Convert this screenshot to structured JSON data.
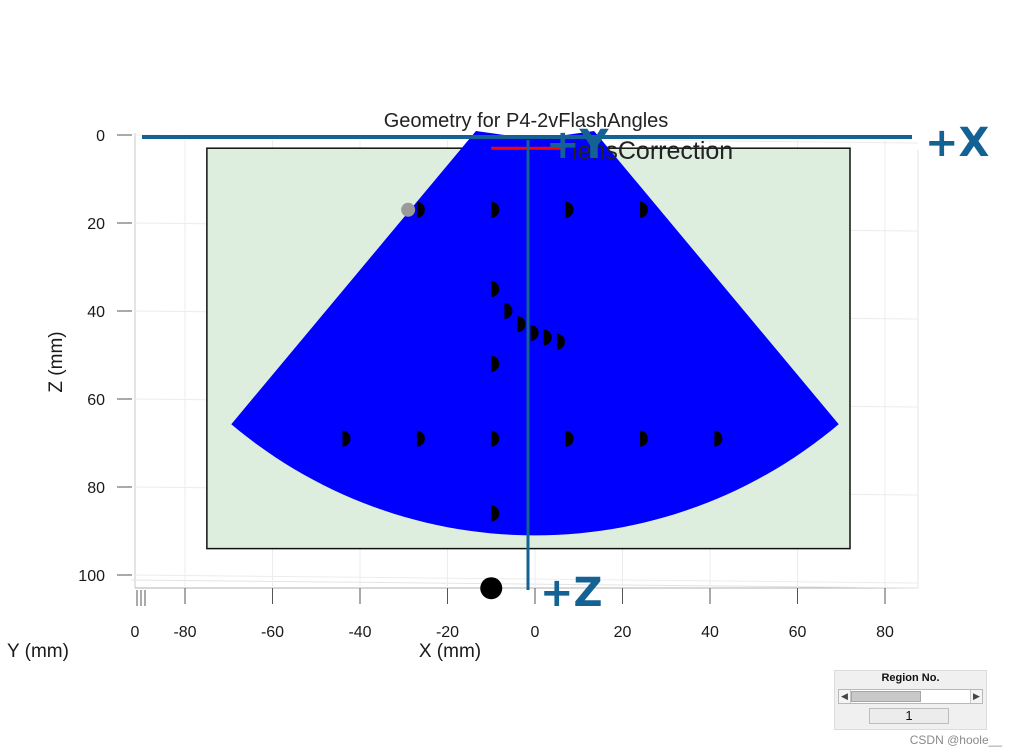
{
  "chart_data": {
    "type": "scatter",
    "title": "Geometry for P4-2vFlashAngles",
    "xlabel": "X (mm)",
    "ylabel": "Z (mm)",
    "y_depth_label": "Y (mm)",
    "xlim": [
      -92,
      88
    ],
    "zlim": [
      0,
      103
    ],
    "x_ticks": [
      -80,
      -60,
      -40,
      -20,
      0,
      20,
      40,
      60,
      80
    ],
    "z_ticks": [
      0,
      20,
      40,
      60,
      80,
      100
    ],
    "y_ticks": [
      0
    ],
    "grid": true,
    "region_box": {
      "x": [
        -75,
        72
      ],
      "z": [
        3,
        94
      ]
    },
    "sector": {
      "apex": [
        0,
        -17
      ],
      "top_half_width": 7,
      "inner_radius": 21,
      "outer_radius": 108,
      "half_angle_deg": 40,
      "color": "#0000ff"
    },
    "lens_label": "lensCorrection",
    "lens_line": {
      "x": [
        -10,
        7
      ],
      "z": [
        3,
        3
      ],
      "color": "#ff0000"
    },
    "scatterers": [
      {
        "x": -27,
        "z": 17
      },
      {
        "x": -10,
        "z": 17
      },
      {
        "x": 7,
        "z": 17
      },
      {
        "x": 24,
        "z": 17
      },
      {
        "x": -10,
        "z": 35
      },
      {
        "x": -7,
        "z": 40
      },
      {
        "x": -4,
        "z": 43
      },
      {
        "x": -1,
        "z": 45
      },
      {
        "x": 2,
        "z": 46
      },
      {
        "x": 5,
        "z": 47
      },
      {
        "x": -10,
        "z": 52
      },
      {
        "x": -44,
        "z": 69
      },
      {
        "x": -27,
        "z": 69
      },
      {
        "x": -10,
        "z": 69
      },
      {
        "x": 7,
        "z": 69
      },
      {
        "x": 24,
        "z": 69
      },
      {
        "x": 41,
        "z": 69
      },
      {
        "x": -10,
        "z": 86
      }
    ],
    "ghost_point": {
      "x": -29,
      "z": 17
    },
    "big_point": {
      "x": -10,
      "z": 103
    }
  },
  "orientation": {
    "plus_x": "+X",
    "plus_y": "+Y",
    "plus_z": "+Z",
    "color": "#146294"
  },
  "region_control": {
    "title": "Region No.",
    "value": "1",
    "slider_fraction": 0.45
  },
  "watermark": "CSDN @hoole__"
}
